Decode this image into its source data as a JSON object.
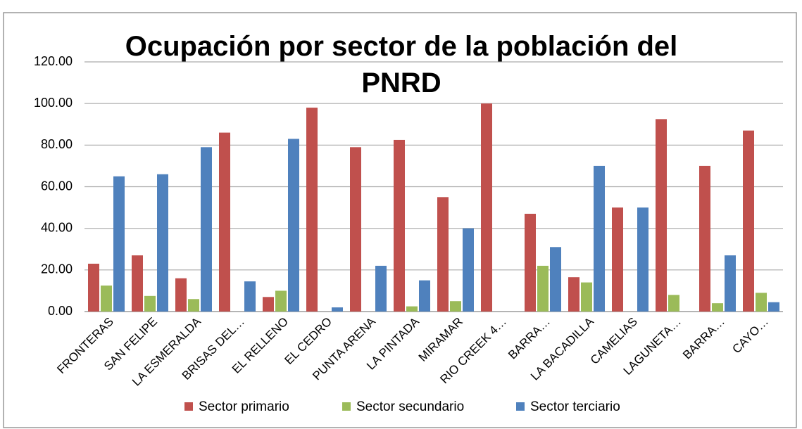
{
  "chart_data": {
    "type": "bar",
    "title": "Ocupación por sector de la población del PNRD",
    "categories": [
      "FRONTERAS",
      "SAN FELIPE",
      "LA ESMERALDA",
      "BRISAS DEL…",
      "EL RELLENO",
      "EL CEDRO",
      "PUNTA ARENA",
      "LA PINTADA",
      "MIRAMAR",
      "RIO CREEK 4…",
      "BARRA…",
      "LA BACADILLA",
      "CAMELIAS",
      "LAGUNETA…",
      "BARRA…",
      "CAYO…"
    ],
    "series": [
      {
        "name": "Sector primario",
        "color": "#c0504d",
        "values": [
          23,
          27,
          16,
          86,
          7,
          98,
          79,
          82.5,
          55,
          100,
          47,
          16.5,
          50,
          92.5,
          70,
          87
        ]
      },
      {
        "name": "Sector secundario",
        "color": "#9bbb59",
        "values": [
          12.5,
          7.5,
          6,
          0,
          10,
          0,
          0,
          2.5,
          5,
          0,
          22,
          14,
          0,
          8,
          4,
          9
        ]
      },
      {
        "name": "Sector terciario",
        "color": "#4f81bd",
        "values": [
          65,
          66,
          79,
          14.5,
          83,
          2,
          22,
          15,
          40,
          0,
          31,
          70,
          50,
          0,
          27,
          4.5
        ]
      }
    ],
    "ylim": [
      0,
      120
    ],
    "yticks": [
      {
        "value": 0,
        "label": "0.00"
      },
      {
        "value": 20,
        "label": "20.00"
      },
      {
        "value": 40,
        "label": "40.00"
      },
      {
        "value": 60,
        "label": "60.00"
      },
      {
        "value": 80,
        "label": "80.00"
      },
      {
        "value": 100,
        "label": "100.00"
      },
      {
        "value": 120,
        "label": "120.00"
      }
    ],
    "grid": true,
    "legend": "bottom"
  }
}
